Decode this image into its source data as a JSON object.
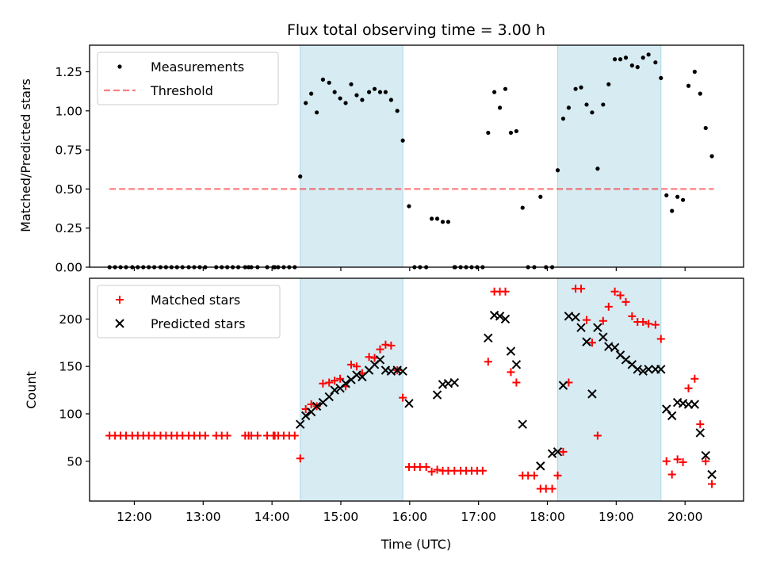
{
  "chart_data": [
    {
      "type": "scatter",
      "title": "Flux total observing time = 3.00 h",
      "xlabel": "",
      "ylabel": "Matched/Predicted stars",
      "xlim": [
        11.35,
        20.85
      ],
      "ylim": [
        0.0,
        1.42
      ],
      "yticks": [
        0.0,
        0.25,
        0.5,
        0.75,
        1.0,
        1.25
      ],
      "ytick_labels": [
        "0.00",
        "0.25",
        "0.50",
        "0.75",
        "1.00",
        "1.25"
      ],
      "xticks": [
        12,
        13,
        14,
        15,
        16,
        17,
        18,
        19,
        20
      ],
      "legend_position": "top-left",
      "legend": [
        {
          "label": "Measurements",
          "marker": "dot",
          "color": "#000000"
        },
        {
          "label": "Threshold",
          "marker": "dashed-line",
          "color": "#ff7f7f"
        }
      ],
      "shaded_spans": [
        [
          14.41,
          15.9
        ],
        [
          18.15,
          19.65
        ]
      ],
      "shade_color": "#add8e6",
      "threshold": {
        "value": 0.5,
        "x_range": [
          11.64,
          20.42
        ]
      },
      "series": [
        {
          "name": "Measurements",
          "x": [
            11.64,
            11.72,
            11.8,
            11.88,
            11.97,
            12.05,
            12.13,
            12.21,
            12.29,
            12.38,
            12.46,
            12.54,
            12.62,
            12.7,
            12.79,
            12.87,
            12.95,
            13.03,
            13.19,
            13.27,
            13.35,
            13.43,
            13.51,
            13.61,
            13.66,
            13.7,
            13.79,
            13.93,
            14.02,
            14.04,
            14.09,
            14.17,
            14.25,
            14.33,
            14.41,
            14.49,
            14.57,
            14.65,
            14.74,
            14.83,
            14.91,
            14.99,
            15.07,
            15.15,
            15.23,
            15.31,
            15.41,
            15.49,
            15.57,
            15.65,
            15.73,
            15.82,
            15.9,
            15.99,
            16.07,
            16.15,
            16.24,
            16.32,
            16.4,
            16.48,
            16.56,
            16.65,
            16.66,
            16.74,
            16.82,
            16.9,
            16.98,
            17.06,
            17.14,
            17.23,
            17.31,
            17.39,
            17.47,
            17.55,
            17.64,
            17.72,
            17.81,
            17.9,
            17.98,
            18.07,
            18.15,
            18.23,
            18.31,
            18.41,
            18.49,
            18.57,
            18.65,
            18.73,
            18.81,
            18.89,
            18.98,
            19.06,
            19.14,
            19.23,
            19.31,
            19.39,
            19.47,
            19.57,
            19.65,
            19.73,
            19.81,
            19.89,
            19.97,
            20.05,
            20.14,
            20.22,
            20.3,
            20.39
          ],
          "y": [
            0,
            0,
            0,
            0,
            0,
            0,
            0,
            0,
            0,
            0,
            0,
            0,
            0,
            0,
            0,
            0,
            0,
            0,
            0,
            0,
            0,
            0,
            0,
            0,
            0,
            0,
            0,
            0,
            0,
            0,
            0,
            0,
            0,
            0,
            0.58,
            1.05,
            1.11,
            0.99,
            1.2,
            1.18,
            1.12,
            1.08,
            1.05,
            1.17,
            1.1,
            1.07,
            1.12,
            1.14,
            1.12,
            1.12,
            1.07,
            1.0,
            0.81,
            0.39,
            0,
            0,
            0,
            0.31,
            0.31,
            0.29,
            0.29,
            0,
            0,
            0,
            0,
            0,
            0,
            0,
            0.86,
            1.12,
            1.02,
            1.14,
            0.86,
            0.87,
            0.38,
            0,
            0,
            0.45,
            0,
            0,
            0.62,
            0.95,
            1.02,
            1.14,
            1.15,
            1.04,
            0.99,
            0.63,
            1.04,
            1.17,
            1.33,
            1.33,
            1.34,
            1.29,
            1.28,
            1.34,
            1.36,
            1.31,
            1.21,
            0.46,
            0.36,
            0.45,
            0.43,
            1.16,
            1.25,
            1.11,
            0.89,
            0.71
          ]
        }
      ]
    },
    {
      "type": "scatter",
      "title": "",
      "xlabel": "Time (UTC)",
      "ylabel": "Count",
      "xlim": [
        11.35,
        20.85
      ],
      "ylim": [
        8,
        243
      ],
      "yticks": [
        50,
        100,
        150,
        200
      ],
      "ytick_labels": [
        "50",
        "100",
        "150",
        "200"
      ],
      "xticks": [
        12,
        13,
        14,
        15,
        16,
        17,
        18,
        19,
        20
      ],
      "xtick_labels": [
        "12:00",
        "13:00",
        "14:00",
        "15:00",
        "16:00",
        "17:00",
        "18:00",
        "19:00",
        "20:00"
      ],
      "legend_position": "top-left",
      "legend": [
        {
          "label": "Matched stars",
          "marker": "plus",
          "color": "#ff0000"
        },
        {
          "label": "Predicted stars",
          "marker": "x",
          "color": "#000000"
        }
      ],
      "shaded_spans": [
        [
          14.41,
          15.9
        ],
        [
          18.15,
          19.65
        ]
      ],
      "shade_color": "#add8e6",
      "series": [
        {
          "name": "Matched stars",
          "x": [
            11.64,
            11.72,
            11.8,
            11.88,
            11.97,
            12.05,
            12.13,
            12.21,
            12.29,
            12.38,
            12.46,
            12.54,
            12.62,
            12.7,
            12.79,
            12.87,
            12.95,
            13.03,
            13.19,
            13.27,
            13.35,
            13.61,
            13.66,
            13.7,
            13.79,
            13.93,
            14.02,
            14.04,
            14.09,
            14.17,
            14.25,
            14.33,
            14.41,
            14.49,
            14.57,
            14.65,
            14.74,
            14.83,
            14.91,
            14.99,
            15.07,
            15.15,
            15.23,
            15.31,
            15.41,
            15.49,
            15.57,
            15.65,
            15.73,
            15.82,
            15.9,
            15.99,
            16.07,
            16.15,
            16.24,
            16.32,
            16.4,
            16.48,
            16.56,
            16.65,
            16.74,
            16.82,
            16.9,
            16.98,
            17.06,
            17.14,
            17.23,
            17.31,
            17.39,
            17.47,
            17.55,
            17.64,
            17.72,
            17.81,
            17.9,
            17.98,
            18.07,
            18.15,
            18.23,
            18.31,
            18.41,
            18.49,
            18.57,
            18.65,
            18.73,
            18.81,
            18.89,
            18.98,
            19.06,
            19.14,
            19.23,
            19.31,
            19.39,
            19.47,
            19.57,
            19.65,
            19.73,
            19.81,
            19.89,
            19.97,
            20.05,
            20.14,
            20.22,
            20.3,
            20.39
          ],
          "y": [
            77,
            77,
            77,
            77,
            77,
            77,
            77,
            77,
            77,
            77,
            77,
            77,
            77,
            77,
            77,
            77,
            77,
            77,
            77,
            77,
            77,
            77,
            77,
            77,
            77,
            77,
            77,
            77,
            77,
            77,
            77,
            77,
            53,
            105,
            110,
            108,
            132,
            133,
            135,
            137,
            129,
            152,
            150,
            143,
            160,
            159,
            168,
            173,
            172,
            146,
            117,
            44,
            44,
            44,
            44,
            39,
            41,
            40,
            40,
            40,
            40,
            40,
            40,
            40,
            40,
            155,
            229,
            229,
            229,
            144,
            133,
            35,
            35,
            35,
            21,
            21,
            21,
            35,
            60,
            133,
            232,
            232,
            199,
            175,
            77,
            198,
            213,
            229,
            225,
            218,
            203,
            197,
            197,
            195,
            194,
            179,
            50,
            36,
            52,
            49,
            127,
            137,
            89,
            50,
            26
          ],
          "x_note": "Matched: one point per measurement epoch"
        },
        {
          "name": "Predicted stars",
          "x": [
            14.41,
            14.49,
            14.57,
            14.65,
            14.74,
            14.83,
            14.91,
            14.99,
            15.07,
            15.15,
            15.23,
            15.31,
            15.41,
            15.49,
            15.57,
            15.65,
            15.73,
            15.82,
            15.9,
            15.99,
            16.4,
            16.48,
            16.56,
            16.65,
            17.14,
            17.23,
            17.31,
            17.39,
            17.47,
            17.55,
            17.64,
            17.9,
            18.07,
            18.15,
            18.23,
            18.31,
            18.41,
            18.49,
            18.57,
            18.65,
            18.73,
            18.81,
            18.89,
            18.98,
            19.06,
            19.14,
            19.23,
            19.31,
            19.39,
            19.47,
            19.57,
            19.65,
            19.73,
            19.81,
            19.89,
            19.97,
            20.05,
            20.14,
            20.22,
            20.3,
            20.39
          ],
          "y": [
            89,
            98,
            102,
            108,
            112,
            118,
            125,
            127,
            132,
            136,
            141,
            139,
            146,
            152,
            157,
            146,
            145,
            146,
            145,
            111,
            120,
            131,
            132,
            133,
            180,
            204,
            203,
            200,
            166,
            152,
            89,
            45,
            58,
            60,
            130,
            203,
            202,
            191,
            176,
            121,
            191,
            181,
            171,
            170,
            162,
            157,
            152,
            147,
            145,
            147,
            147,
            147,
            105,
            98,
            112,
            111,
            110,
            110,
            80,
            56,
            36
          ]
        }
      ]
    }
  ]
}
